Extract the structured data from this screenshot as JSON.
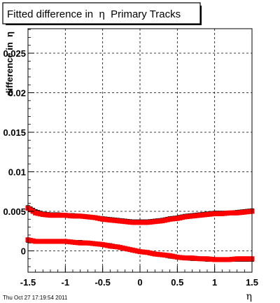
{
  "chart_data": {
    "type": "scatter",
    "title": "Fitted difference in  η  Primary Tracks",
    "xlabel": "η",
    "ylabel": "difference in  η",
    "xlim": [
      -1.5,
      1.5
    ],
    "ylim": [
      -0.0027,
      0.0281
    ],
    "x_ticks": [
      -1.5,
      -1,
      -0.5,
      0,
      0.5,
      1,
      1.5
    ],
    "x_tick_labels": [
      "-1.5",
      "-1",
      "-0.5",
      "0",
      "0.5",
      "1",
      "1.5"
    ],
    "y_ticks": [
      0,
      0.005,
      0.01,
      0.015,
      0.02,
      0.025
    ],
    "y_tick_labels": [
      "0",
      "0.005",
      "0.01",
      "0.015",
      "0.02",
      "0.025"
    ],
    "grid": true,
    "timestamp": "Thu Oct 27 17:19:54 2011",
    "series": [
      {
        "color": "#000000",
        "x": [
          -1.5,
          -1.4,
          -1.3,
          -1.2,
          -1.1,
          -1.0,
          -0.9,
          -0.8,
          -0.7,
          -0.6,
          -0.5,
          -0.4,
          -0.3,
          -0.2,
          -0.1,
          0.0,
          0.1,
          0.2,
          0.3,
          0.4,
          0.5,
          0.6,
          0.7,
          0.8,
          0.9,
          1.0,
          1.1,
          1.2,
          1.3,
          1.4,
          1.5
        ],
        "y": [
          0.0055,
          0.005,
          0.0047,
          0.0046,
          0.0046,
          0.0045,
          0.0045,
          0.0044,
          0.0043,
          0.0042,
          0.0041,
          0.004,
          0.0039,
          0.0038,
          0.0037,
          0.0037,
          0.0037,
          0.0038,
          0.0039,
          0.0041,
          0.0042,
          0.0044,
          0.0045,
          0.0046,
          0.0047,
          0.0048,
          0.0048,
          0.0048,
          0.0049,
          0.005,
          0.0051
        ]
      },
      {
        "color": "#ff0000",
        "x": [
          -1.5,
          -1.4,
          -1.3,
          -1.2,
          -1.1,
          -1.0,
          -0.9,
          -0.8,
          -0.7,
          -0.6,
          -0.5,
          -0.4,
          -0.3,
          -0.2,
          -0.1,
          0.0,
          0.1,
          0.2,
          0.3,
          0.4,
          0.5,
          0.6,
          0.7,
          0.8,
          0.9,
          1.0,
          1.1,
          1.2,
          1.3,
          1.4,
          1.5
        ],
        "y": [
          0.0054,
          0.0048,
          0.0046,
          0.0045,
          0.0045,
          0.0045,
          0.0044,
          0.0044,
          0.0043,
          0.0042,
          0.004,
          0.0039,
          0.0038,
          0.0037,
          0.0036,
          0.0036,
          0.0036,
          0.0037,
          0.0038,
          0.004,
          0.0041,
          0.0043,
          0.0044,
          0.0045,
          0.0046,
          0.0047,
          0.0047,
          0.0048,
          0.0048,
          0.0049,
          0.005
        ]
      },
      {
        "color": "#000000",
        "x": [
          -1.5,
          -1.4,
          -1.3,
          -1.2,
          -1.1,
          -1.0,
          -0.9,
          -0.8,
          -0.7,
          -0.6,
          -0.5,
          -0.4,
          -0.3,
          -0.2,
          -0.1,
          0.0,
          0.1,
          0.2,
          0.3,
          0.4,
          0.5,
          0.6,
          0.7,
          0.8,
          0.9,
          1.0,
          1.1,
          1.2,
          1.3,
          1.4,
          1.5
        ],
        "y": [
          0.0013,
          0.0012,
          0.0012,
          0.0012,
          0.0012,
          0.0012,
          0.0011,
          0.0011,
          0.001,
          0.0009,
          0.0008,
          0.0007,
          0.0005,
          0.0003,
          0.0001,
          -0.0001,
          -0.0002,
          -0.0004,
          -0.0005,
          -0.0007,
          -0.0008,
          -0.0009,
          -0.001,
          -0.001,
          -0.0011,
          -0.0011,
          -0.0011,
          -0.0011,
          -0.0011,
          -0.0011,
          -0.0011
        ]
      },
      {
        "color": "#ff0000",
        "x": [
          -1.5,
          -1.4,
          -1.3,
          -1.2,
          -1.1,
          -1.0,
          -0.9,
          -0.8,
          -0.7,
          -0.6,
          -0.5,
          -0.4,
          -0.3,
          -0.2,
          -0.1,
          0.0,
          0.1,
          0.2,
          0.3,
          0.4,
          0.5,
          0.6,
          0.7,
          0.8,
          0.9,
          1.0,
          1.1,
          1.2,
          1.3,
          1.4,
          1.5
        ],
        "y": [
          0.0014,
          0.0012,
          0.0012,
          0.0012,
          0.0012,
          0.0012,
          0.0011,
          0.001,
          0.001,
          0.0009,
          0.0008,
          0.0006,
          0.0005,
          0.0003,
          0.0001,
          -0.0001,
          -0.0002,
          -0.0004,
          -0.0005,
          -0.0006,
          -0.0008,
          -0.0009,
          -0.0009,
          -0.001,
          -0.001,
          -0.0011,
          -0.0011,
          -0.0011,
          -0.001,
          -0.001,
          -0.001
        ]
      }
    ]
  }
}
